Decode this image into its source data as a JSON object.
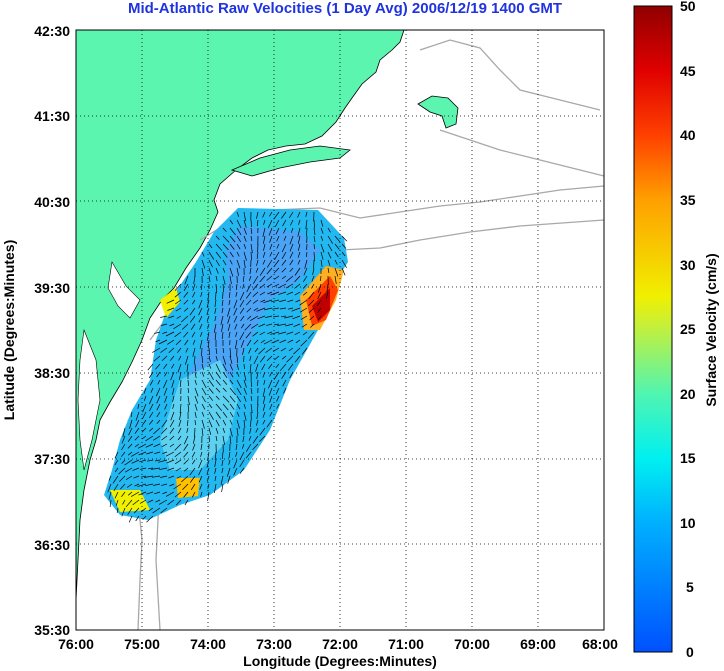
{
  "title": "Mid-Atlantic Raw Velocities (1 Day Avg) 2006/12/19 1400 GMT",
  "axes": {
    "xlabel": "Longitude (Degrees:Minutes)",
    "ylabel": "Latitude (Degrees:Minutes)",
    "x_ticks": [
      "76:00",
      "75:00",
      "74:00",
      "73:00",
      "72:00",
      "71:00",
      "70:00",
      "69:00",
      "68:00"
    ],
    "y_ticks": [
      "42:30",
      "41:30",
      "40:30",
      "39:30",
      "38:30",
      "37:30",
      "36:30",
      "35:30"
    ]
  },
  "colorbar": {
    "label": "Surface Velocity (cm/s)",
    "ticks": [
      "50",
      "45",
      "40",
      "35",
      "30",
      "25",
      "20",
      "15",
      "10",
      "5",
      "0"
    ],
    "min": 0,
    "max": 50
  },
  "colors": {
    "land": "#5cf5b0",
    "title": "#1f33e0",
    "grid": "#000000"
  }
}
